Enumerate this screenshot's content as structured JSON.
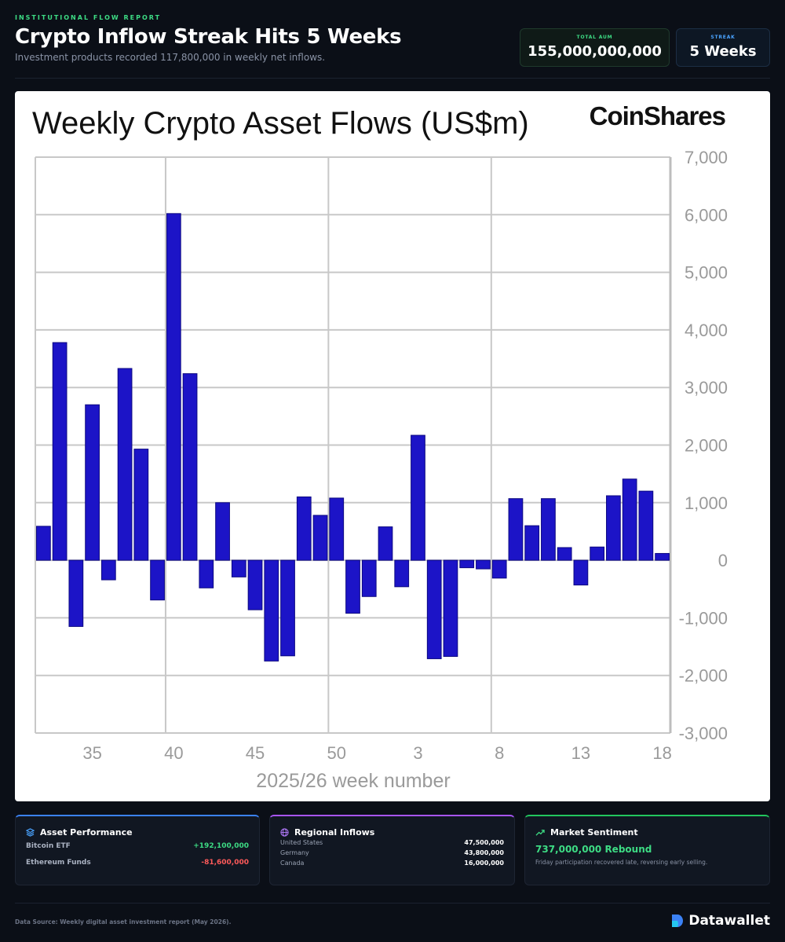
{
  "header": {
    "eyebrow": "INSTITUTIONAL FLOW REPORT",
    "title": "Crypto Inflow Streak Hits 5 Weeks",
    "subtitle": "Investment products recorded 117,800,000 in weekly net inflows."
  },
  "stats": {
    "aum": {
      "label": "TOTAL AUM",
      "value": "155,000,000,000"
    },
    "streak": {
      "label": "STREAK",
      "value": "5 Weeks"
    }
  },
  "chart_data": {
    "type": "bar",
    "title": "Weekly Crypto Asset Flows (US$m)",
    "brand": "CoinShares",
    "xlabel": "2025/26 week number",
    "ylabel": "",
    "ylim": [
      -3000,
      7000
    ],
    "yticks": [
      7000,
      6000,
      5000,
      4000,
      3000,
      2000,
      1000,
      0,
      -1000,
      -2000,
      -3000
    ],
    "ytick_labels": [
      "7,000",
      "6,000",
      "5,000",
      "4,000",
      "3,000",
      "2,000",
      "1,000",
      "0",
      "-1,000",
      "-2,000",
      "-3,000"
    ],
    "xtick_labels": [
      "35",
      "40",
      "45",
      "50",
      "3",
      "8",
      "13",
      "18"
    ],
    "categories": [
      "32",
      "33",
      "34",
      "35",
      "36",
      "37",
      "38",
      "39",
      "40",
      "41",
      "42",
      "43",
      "44",
      "45",
      "46",
      "47",
      "48",
      "49",
      "50",
      "51",
      "52",
      "1",
      "2",
      "3",
      "4",
      "5",
      "6",
      "7",
      "8",
      "9",
      "10",
      "11",
      "12",
      "13",
      "14",
      "15",
      "16",
      "17",
      "18"
    ],
    "values": [
      590,
      3780,
      -1150,
      2700,
      -340,
      3330,
      1930,
      -690,
      6020,
      3240,
      -480,
      1000,
      -290,
      -860,
      -1750,
      -1660,
      1100,
      780,
      1080,
      -920,
      -630,
      580,
      -460,
      2170,
      -1710,
      -1670,
      -130,
      -150,
      -310,
      1070,
      600,
      1070,
      220,
      -430,
      230,
      1120,
      1410,
      1200,
      118
    ],
    "bar_color": "#1c14c7",
    "grid": true
  },
  "cards": {
    "asset": {
      "title": "Asset Performance",
      "rows": [
        {
          "name": "Bitcoin ETF",
          "value": "+192,100,000"
        },
        {
          "name": "Ethereum Funds",
          "value": "-81,600,000"
        }
      ]
    },
    "region": {
      "title": "Regional Inflows",
      "rows": [
        {
          "name": "United States",
          "value": "47,500,000"
        },
        {
          "name": "Germany",
          "value": "43,800,000"
        },
        {
          "name": "Canada",
          "value": "16,000,000"
        }
      ]
    },
    "sentiment": {
      "title": "Market Sentiment",
      "value": "737,000,000 Rebound",
      "desc": "Friday participation recovered late, reversing early selling."
    }
  },
  "footer": {
    "source": "Data Source: Weekly digital asset investment report (May 2026).",
    "brand": "Datawallet"
  },
  "colors": {
    "positive": "#3ddc84",
    "negative": "#ff5a5a",
    "accent_blue": "#3b82f6",
    "accent_purple": "#a855f7"
  }
}
